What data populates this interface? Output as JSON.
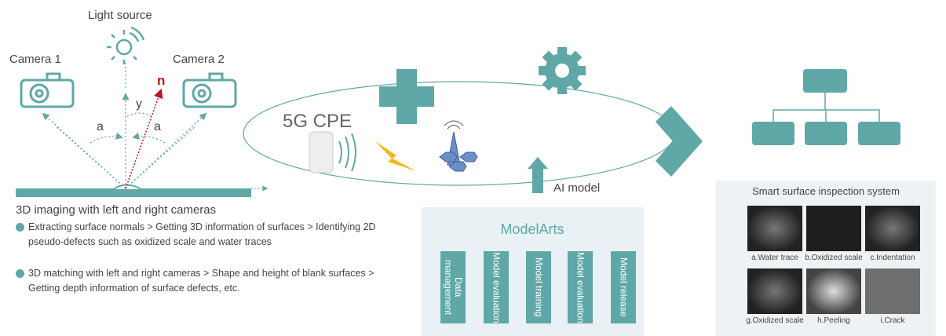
{
  "labels": {
    "light_source": "Light source",
    "camera_1": "Camera 1",
    "camera_2": "Camera 2",
    "normal": "n",
    "angle_y": "y",
    "angle_a_left": "a",
    "angle_a_right": "a"
  },
  "network": {
    "cpe": "5G CPE",
    "ai_model": "AI model"
  },
  "imaging": {
    "title": "3D imaging with left and right cameras",
    "bullets": [
      "Extracting surface normals > Getting 3D information of surfaces > Identifying 2D pseudo-defects such as oxidized scale and water traces",
      "3D matching with left and right cameras > Shape and height of blank surfaces > Getting depth information of surface defects, etc."
    ]
  },
  "modelarts": {
    "title": "ModelArts",
    "steps": [
      "Data management",
      "Model evaluation",
      "Model training",
      "Model evaluation",
      "Model release"
    ]
  },
  "inspection": {
    "title": "Smart surface inspection system",
    "samples": [
      "a.Water trace",
      "b.Oxidized scale",
      "c.Indentation",
      "g.Oxidized scale",
      "h.Peeling",
      "i.Crack"
    ]
  }
}
